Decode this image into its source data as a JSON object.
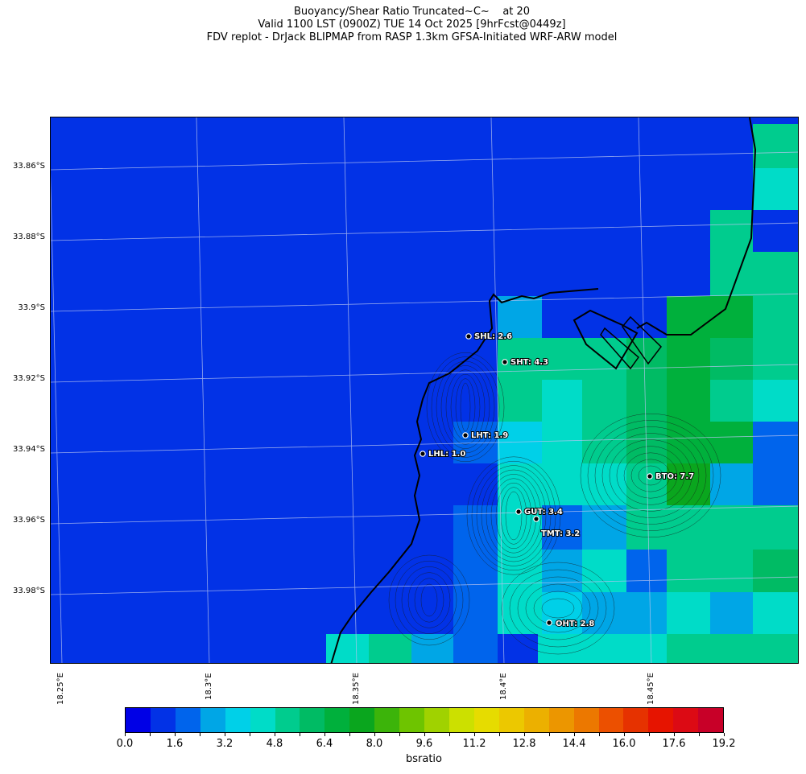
{
  "title": {
    "line1": "Buoyancy/Shear Ratio Truncated~C~    at 20",
    "line2": "Valid 1100 LST (0900Z) TUE 14 Oct 2025 [9hrFcst@0449z]",
    "line3": "FDV replot - DrJack BLIPMAP from RASP 1.3km GFSA-Initiated WRF-ARW model"
  },
  "lat_labels": [
    "33.86°S",
    "33.88°S",
    "33.9°S",
    "33.92°S",
    "33.94°S",
    "33.96°S",
    "33.98°S"
  ],
  "lon_labels": [
    "18.25°E",
    "18.3°E",
    "18.35°E",
    "18.4°E",
    "18.45°E"
  ],
  "colorbar": {
    "label": "bsratio",
    "ticks": [
      "0.0",
      "1.6",
      "3.2",
      "4.8",
      "6.4",
      "8.0",
      "9.6",
      "11.2",
      "12.8",
      "14.4",
      "16.0",
      "17.6",
      "19.2"
    ],
    "colors": [
      "#0000e6",
      "#0232e6",
      "#0064ec",
      "#00a6e6",
      "#00d0e8",
      "#00dcc8",
      "#00cc8e",
      "#00bb64",
      "#00b03c",
      "#0aa61e",
      "#3cb40a",
      "#6ec400",
      "#a0d200",
      "#cce000",
      "#e6dc00",
      "#ecc800",
      "#ecb000",
      "#ec9600",
      "#ec7800",
      "#ec5000",
      "#e63200",
      "#e61400",
      "#dc0a14",
      "#c80028"
    ]
  },
  "stations": [
    {
      "code": "SHL",
      "value": "2.6",
      "label": "SHL: 2.6"
    },
    {
      "code": "SHT",
      "value": "4.3",
      "label": "SHT: 4.3"
    },
    {
      "code": "LHT",
      "value": "1.9",
      "label": "LHT: 1.9"
    },
    {
      "code": "LHL",
      "value": "1.0",
      "label": "LHL: 1.0"
    },
    {
      "code": "BTO",
      "value": "7.7",
      "label": "BTO: 7.7"
    },
    {
      "code": "GUT",
      "value": "3.4",
      "label": "GUT: 3.4"
    },
    {
      "code": "TMT",
      "value": "3.2",
      "label": "TMT: 3.2"
    },
    {
      "code": "OHT",
      "value": "2.8",
      "label": "OHT: 2.8"
    }
  ]
}
